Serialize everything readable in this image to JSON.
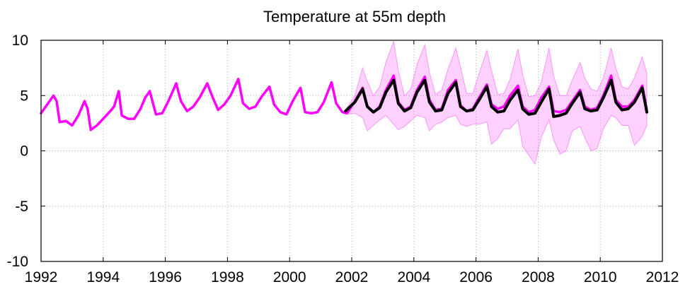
{
  "chart_data": {
    "type": "line",
    "title": "Temperature at 55m depth",
    "xlabel": "",
    "ylabel": "",
    "xlim": [
      1992,
      2012
    ],
    "ylim": [
      -10,
      10
    ],
    "xticks": [
      1992,
      1994,
      1996,
      1998,
      2000,
      2002,
      2004,
      2006,
      2008,
      2010,
      2012
    ],
    "yticks": [
      -10,
      -5,
      0,
      5,
      10
    ],
    "xtick_labels": [
      "1992",
      "1994",
      "1996",
      "1998",
      "2000",
      "2002",
      "2004",
      "2006",
      "2008",
      "2010",
      "2012"
    ],
    "ytick_labels": [
      "-10",
      "-5",
      "0",
      "5",
      "10"
    ],
    "grid": true,
    "series": [
      {
        "color": "#ff00ff",
        "x": [
          1992.0,
          1992.2,
          1992.4,
          1992.5,
          1992.6,
          1992.8,
          1993.0,
          1993.2,
          1993.4,
          1993.5,
          1993.6,
          1993.8,
          1994.0,
          1994.2,
          1994.35,
          1994.5,
          1994.6,
          1994.8,
          1995.0,
          1995.2,
          1995.35,
          1995.5,
          1995.7,
          1995.9,
          1996.1,
          1996.35,
          1996.5,
          1996.7,
          1996.9,
          1997.1,
          1997.35,
          1997.5,
          1997.7,
          1997.9,
          1998.1,
          1998.35,
          1998.5,
          1998.7,
          1998.9,
          1999.1,
          1999.35,
          1999.5,
          1999.7,
          1999.9,
          2000.1,
          2000.35,
          2000.5,
          2000.7,
          2000.9,
          2001.1,
          2001.35,
          2001.5,
          2001.7,
          2001.85,
          2002.1,
          2002.35,
          2002.5,
          2002.7,
          2002.9,
          2003.1,
          2003.35,
          2003.5,
          2003.7,
          2003.9,
          2004.1,
          2004.35,
          2004.5,
          2004.7,
          2004.9,
          2005.1,
          2005.35,
          2005.5,
          2005.7,
          2005.9,
          2006.1,
          2006.35,
          2006.5,
          2006.7,
          2006.9,
          2007.1,
          2007.35,
          2007.5,
          2007.7,
          2007.9,
          2008.1,
          2008.35,
          2008.5,
          2008.7,
          2008.9,
          2009.1,
          2009.35,
          2009.5,
          2009.7,
          2009.9,
          2010.1,
          2010.35,
          2010.5,
          2010.7,
          2010.9,
          2011.1,
          2011.35,
          2011.5
        ],
        "y": [
          3.4,
          4.2,
          5.0,
          4.5,
          2.6,
          2.7,
          2.3,
          3.2,
          4.5,
          3.8,
          1.9,
          2.3,
          2.9,
          3.5,
          4.0,
          5.4,
          3.2,
          2.9,
          2.9,
          3.8,
          4.8,
          5.4,
          3.3,
          3.4,
          4.5,
          6.1,
          4.5,
          3.6,
          4.0,
          4.8,
          6.1,
          5.0,
          3.7,
          4.2,
          5.0,
          6.5,
          4.3,
          3.8,
          4.0,
          4.9,
          5.8,
          4.2,
          3.5,
          3.3,
          4.5,
          5.7,
          3.5,
          3.4,
          3.5,
          4.4,
          6.2,
          4.3,
          3.5,
          3.4,
          4.5,
          5.7,
          4.0,
          3.5,
          4.0,
          5.5,
          6.8,
          4.4,
          3.7,
          4.0,
          5.5,
          6.7,
          4.6,
          3.7,
          3.8,
          5.5,
          6.4,
          4.1,
          3.6,
          3.8,
          4.8,
          6.0,
          4.2,
          3.8,
          4.0,
          5.0,
          5.9,
          4.0,
          3.5,
          3.7,
          4.8,
          5.8,
          3.6,
          3.5,
          3.7,
          4.5,
          5.5,
          4.0,
          3.7,
          3.9,
          5.0,
          6.8,
          4.6,
          4.0,
          4.0,
          4.6,
          5.9,
          3.7
        ]
      },
      {
        "color": "#000000",
        "x": [
          2001.8,
          2002.1,
          2002.35,
          2002.5,
          2002.7,
          2002.9,
          2003.1,
          2003.35,
          2003.5,
          2003.7,
          2003.9,
          2004.1,
          2004.35,
          2004.5,
          2004.7,
          2004.9,
          2005.1,
          2005.35,
          2005.5,
          2005.7,
          2005.9,
          2006.1,
          2006.35,
          2006.5,
          2006.7,
          2006.9,
          2007.1,
          2007.35,
          2007.5,
          2007.7,
          2007.9,
          2008.1,
          2008.35,
          2008.5,
          2008.7,
          2008.9,
          2009.1,
          2009.35,
          2009.5,
          2009.7,
          2009.9,
          2010.1,
          2010.35,
          2010.5,
          2010.7,
          2010.9,
          2011.1,
          2011.35,
          2011.5
        ],
        "y": [
          3.6,
          4.4,
          5.6,
          4.0,
          3.5,
          3.9,
          5.3,
          6.4,
          4.3,
          3.6,
          3.9,
          5.3,
          6.4,
          4.4,
          3.6,
          3.7,
          5.2,
          6.2,
          4.0,
          3.6,
          3.7,
          4.6,
          5.8,
          4.0,
          3.5,
          3.6,
          4.6,
          5.5,
          3.8,
          3.3,
          3.4,
          4.4,
          5.6,
          3.1,
          3.2,
          3.4,
          4.3,
          5.3,
          3.8,
          3.6,
          3.7,
          4.8,
          6.4,
          4.4,
          3.7,
          3.8,
          4.4,
          5.7,
          3.5
        ]
      }
    ],
    "band": {
      "color": "#ff00ff",
      "opacity": 0.18,
      "x": [
        2001.8,
        2002.1,
        2002.35,
        2002.5,
        2002.7,
        2002.9,
        2003.1,
        2003.35,
        2003.5,
        2003.7,
        2003.9,
        2004.1,
        2004.35,
        2004.5,
        2004.7,
        2004.9,
        2005.1,
        2005.35,
        2005.5,
        2005.7,
        2005.9,
        2006.1,
        2006.35,
        2006.5,
        2006.7,
        2006.9,
        2007.1,
        2007.35,
        2007.5,
        2007.7,
        2007.9,
        2008.1,
        2008.35,
        2008.5,
        2008.7,
        2008.9,
        2009.1,
        2009.35,
        2009.5,
        2009.7,
        2009.9,
        2010.1,
        2010.35,
        2010.5,
        2010.7,
        2010.9,
        2011.1,
        2011.35,
        2011.5
      ],
      "upper": [
        3.7,
        5.0,
        7.5,
        6.3,
        5.0,
        5.8,
        8.0,
        9.9,
        7.3,
        5.0,
        5.6,
        7.8,
        9.6,
        7.1,
        5.1,
        5.5,
        7.4,
        9.3,
        7.6,
        5.2,
        5.2,
        7.0,
        9.1,
        7.3,
        5.1,
        5.2,
        6.5,
        9.2,
        6.9,
        4.9,
        5.0,
        6.2,
        9.3,
        6.8,
        5.0,
        5.0,
        6.4,
        8.0,
        6.6,
        5.6,
        5.4,
        6.6,
        9.3,
        7.5,
        5.8,
        5.6,
        6.6,
        8.5,
        7.0
      ],
      "lower": [
        3.3,
        3.4,
        3.0,
        1.8,
        2.3,
        2.8,
        3.2,
        2.4,
        1.9,
        2.2,
        2.7,
        3.2,
        3.0,
        1.8,
        2.4,
        2.6,
        3.0,
        3.2,
        2.4,
        2.2,
        2.4,
        2.4,
        2.6,
        0.6,
        1.1,
        2.0,
        2.0,
        2.8,
        0.4,
        -0.4,
        -1.2,
        1.2,
        2.8,
        1.0,
        -0.3,
        0.0,
        1.8,
        2.2,
        1.2,
        0.0,
        0.2,
        2.0,
        3.2,
        3.0,
        2.3,
        2.3,
        0.5,
        1.3,
        2.3
      ]
    }
  }
}
